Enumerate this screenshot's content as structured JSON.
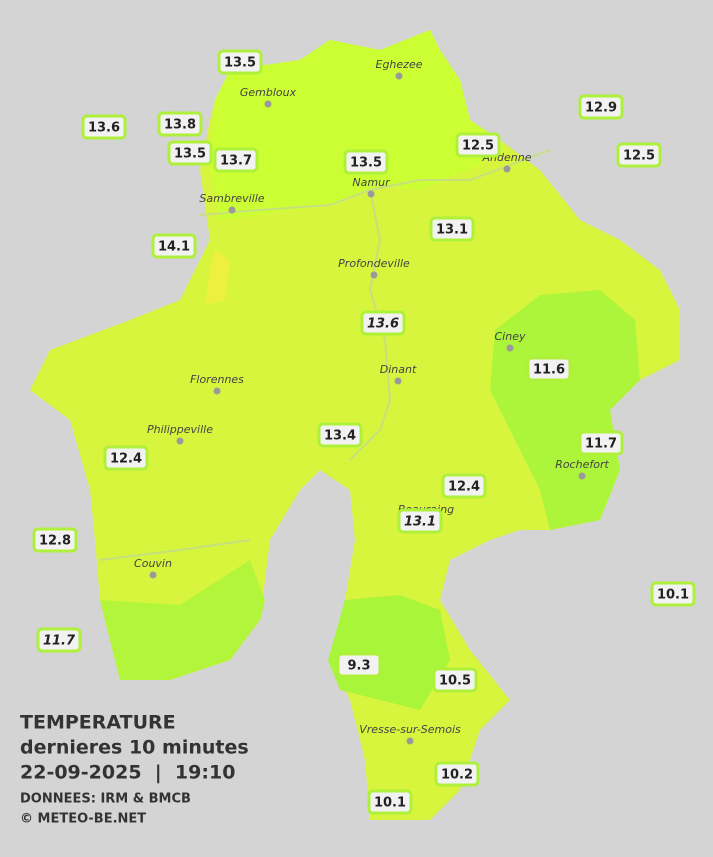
{
  "legend": {
    "lines": [
      "TEMPERATURE",
      "dernieres 10 minutes",
      "22-09-2025  |  19:10"
    ],
    "credits": [
      "DONNEES: IRM & BMCB",
      "© METEO-BE.NET"
    ]
  },
  "towns": [
    "Eghezee",
    "Gembloux",
    "Andenne",
    "Namur",
    "Sambreville",
    "Profondeville",
    "Ciney",
    "Dinant",
    "Florennes",
    "Philippeville",
    "Rochefort",
    "Beauraing",
    "Couvin",
    "Vresse-sur-Semois"
  ],
  "stations": [
    13.5,
    12.9,
    13.6,
    13.8,
    12.5,
    12.5,
    13.5,
    13.7,
    13.5,
    13.1,
    14.1,
    13.6,
    11.6,
    11.7,
    13.4,
    12.4,
    12.4,
    13.1,
    12.8,
    10.1,
    11.7,
    9.3,
    10.5,
    10.2,
    10.1
  ]
}
